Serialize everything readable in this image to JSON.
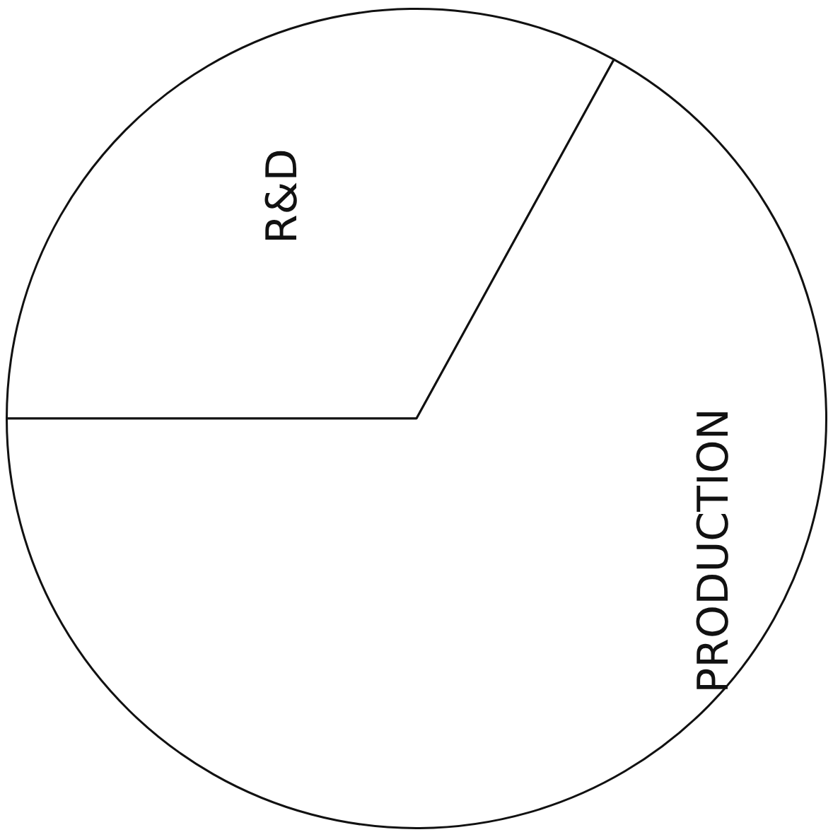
{
  "chart_data": {
    "type": "pie",
    "categories": [
      "R&D",
      "PRODUCTION"
    ],
    "values": [
      33,
      67
    ],
    "colors": [
      "#ffffff",
      "#ffffff"
    ],
    "legend": false
  }
}
